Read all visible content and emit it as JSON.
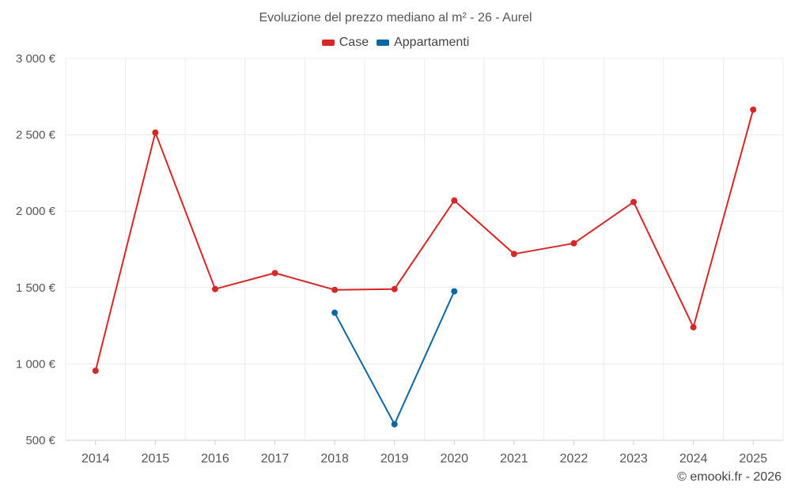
{
  "chart_data": {
    "type": "line",
    "title": "Evoluzione del prezzo mediano al m² - 26 - Aurel",
    "categories": [
      "2014",
      "2015",
      "2016",
      "2017",
      "2018",
      "2019",
      "2020",
      "2021",
      "2022",
      "2023",
      "2024",
      "2025"
    ],
    "ylim": [
      500,
      3000
    ],
    "yticks": [
      500,
      1000,
      1500,
      2000,
      2500,
      3000
    ],
    "ytick_labels": [
      "500 €",
      "1 000 €",
      "1 500 €",
      "2 000 €",
      "2 500 €",
      "3 000 €"
    ],
    "grid": true,
    "legend_position": "top-center",
    "series": [
      {
        "name": "Case",
        "color": "#d62728",
        "values": [
          955,
          2515,
          1490,
          1595,
          1485,
          1490,
          2070,
          1720,
          1790,
          2060,
          1240,
          2665
        ]
      },
      {
        "name": "Appartamenti",
        "color": "#0b67a0",
        "values": [
          null,
          null,
          null,
          null,
          1335,
          605,
          1475,
          null,
          null,
          null,
          null,
          null
        ]
      }
    ]
  },
  "credit": "© emooki.fr - 2026"
}
